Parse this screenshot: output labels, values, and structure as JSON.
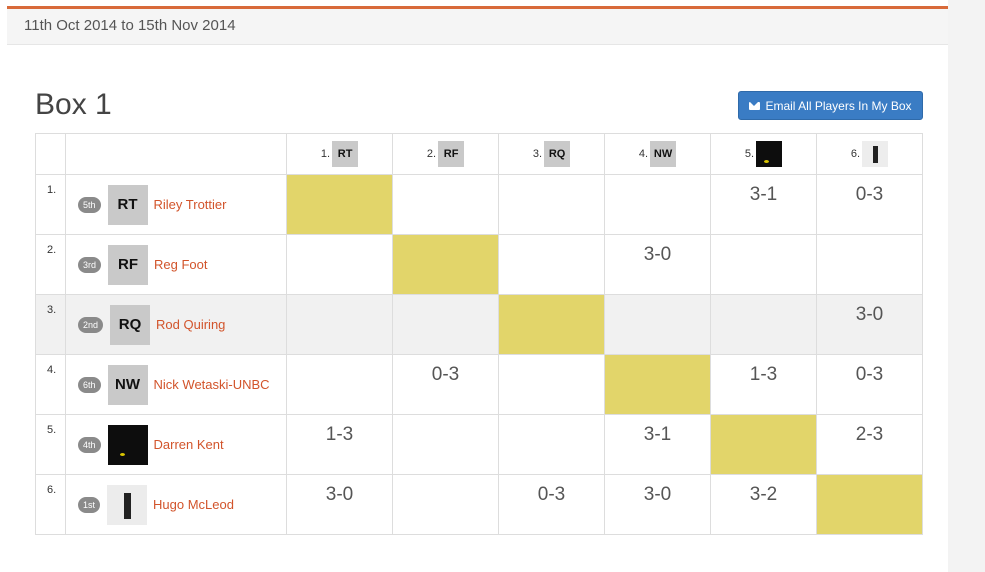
{
  "header": {
    "date_range": "11th Oct 2014 to 15th Nov 2014"
  },
  "box": {
    "title": "Box 1",
    "email_button_label": "Email All Players In My Box"
  },
  "columns": [
    {
      "num": "1.",
      "initials": "RT",
      "avatar": "placeholder"
    },
    {
      "num": "2.",
      "initials": "RF",
      "avatar": "placeholder"
    },
    {
      "num": "3.",
      "initials": "RQ",
      "avatar": "placeholder"
    },
    {
      "num": "4.",
      "initials": "NW",
      "avatar": "placeholder"
    },
    {
      "num": "5.",
      "initials": "",
      "avatar": "photo-dark"
    },
    {
      "num": "6.",
      "initials": "",
      "avatar": "photo-light"
    }
  ],
  "rows": [
    {
      "num": "1.",
      "rank": "5th",
      "initials": "RT",
      "avatar": "placeholder",
      "name": "Riley Trottier",
      "scores": [
        "",
        "",
        "",
        "",
        "3-1",
        "0-3"
      ]
    },
    {
      "num": "2.",
      "rank": "3rd",
      "initials": "RF",
      "avatar": "placeholder",
      "name": "Reg Foot",
      "scores": [
        "",
        "",
        "",
        "3-0",
        "",
        ""
      ]
    },
    {
      "num": "3.",
      "rank": "2nd",
      "initials": "RQ",
      "avatar": "placeholder",
      "name": "Rod Quiring",
      "scores": [
        "",
        "",
        "",
        "",
        "",
        "3-0"
      ]
    },
    {
      "num": "4.",
      "rank": "6th",
      "initials": "NW",
      "avatar": "placeholder",
      "name": "Nick Wetaski-UNBC",
      "scores": [
        "",
        "0-3",
        "",
        "",
        "1-3",
        "0-3"
      ]
    },
    {
      "num": "5.",
      "rank": "4th",
      "initials": "",
      "avatar": "photo-dark",
      "name": "Darren Kent",
      "scores": [
        "1-3",
        "",
        "",
        "3-1",
        "",
        "2-3"
      ]
    },
    {
      "num": "6.",
      "rank": "1st",
      "initials": "",
      "avatar": "photo-light",
      "name": "Hugo McLeod",
      "scores": [
        "3-0",
        "",
        "0-3",
        "3-0",
        "3-2",
        ""
      ]
    }
  ],
  "colors": {
    "accent": "#d86a3a",
    "link": "#d2542b",
    "self_cell": "#e2d56a",
    "button": "#3a7cc4",
    "alt_row": "#f1f1f1"
  }
}
